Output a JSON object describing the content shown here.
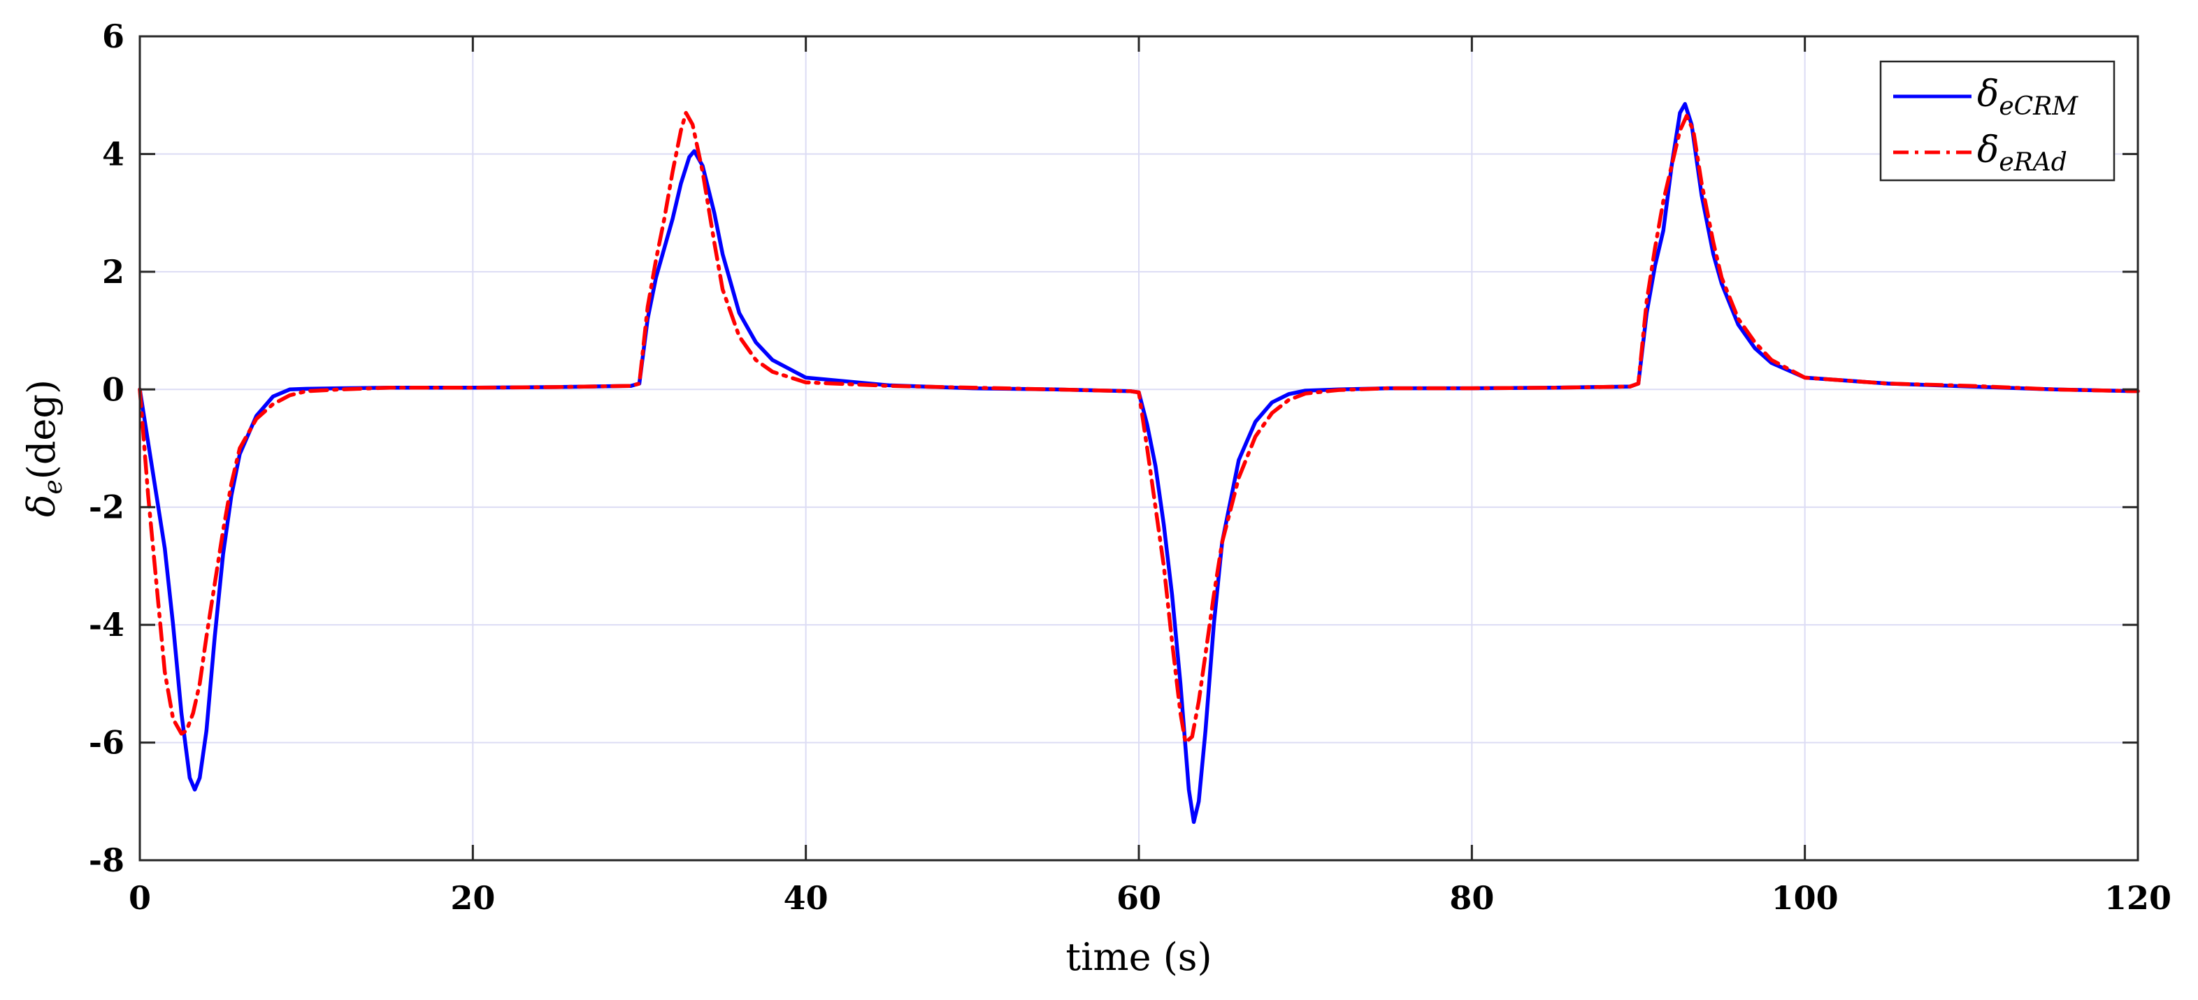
{
  "chart_data": {
    "type": "line",
    "title": "",
    "xlabel": "time (s)",
    "ylabel_main": "δ",
    "ylabel_sub": "e",
    "ylabel_unit": "(deg)",
    "xlim": [
      0,
      120
    ],
    "ylim": [
      -8,
      6
    ],
    "xticks": [
      0,
      20,
      40,
      60,
      80,
      100,
      120
    ],
    "yticks": [
      -8,
      -6,
      -4,
      -2,
      0,
      2,
      4,
      6
    ],
    "grid": true,
    "legend_position": "top-right",
    "series": [
      {
        "name": "δ",
        "name_sub": "eCRM",
        "color": "#0000ff",
        "style": "solid",
        "x": [
          0,
          0.5,
          1,
          1.5,
          2,
          2.5,
          3,
          3.3,
          3.6,
          4,
          4.5,
          5,
          5.5,
          6,
          7,
          8,
          9,
          10,
          12,
          15,
          20,
          25,
          29.5,
          30,
          30.5,
          31,
          31.5,
          32,
          32.5,
          33,
          33.3,
          33.8,
          34.5,
          35,
          36,
          37,
          38,
          40,
          45,
          50,
          55,
          59.5,
          60,
          60.5,
          61,
          61.5,
          62,
          62.5,
          63,
          63.3,
          63.6,
          64,
          64.5,
          65,
          66,
          67,
          68,
          69,
          70,
          72,
          75,
          80,
          85,
          89.5,
          90,
          90.5,
          91,
          91.5,
          92,
          92.5,
          92.8,
          93.2,
          93.8,
          94.5,
          95,
          96,
          97,
          98,
          100,
          105,
          110,
          115,
          120
        ],
        "values": [
          0,
          -0.9,
          -1.8,
          -2.7,
          -4.0,
          -5.5,
          -6.6,
          -6.8,
          -6.6,
          -5.8,
          -4.2,
          -2.8,
          -1.8,
          -1.1,
          -0.45,
          -0.12,
          0.0,
          0.01,
          0.02,
          0.03,
          0.03,
          0.04,
          0.06,
          0.1,
          1.2,
          1.9,
          2.4,
          2.9,
          3.5,
          3.95,
          4.05,
          3.8,
          3.0,
          2.3,
          1.3,
          0.8,
          0.5,
          0.2,
          0.07,
          0.02,
          0.0,
          -0.03,
          -0.05,
          -0.6,
          -1.3,
          -2.3,
          -3.5,
          -5.0,
          -6.8,
          -7.35,
          -7.0,
          -5.8,
          -4.0,
          -2.6,
          -1.2,
          -0.55,
          -0.22,
          -0.08,
          -0.02,
          0.0,
          0.02,
          0.02,
          0.03,
          0.05,
          0.1,
          1.3,
          2.1,
          2.7,
          3.8,
          4.7,
          4.85,
          4.5,
          3.3,
          2.3,
          1.8,
          1.1,
          0.7,
          0.45,
          0.2,
          0.1,
          0.05,
          0.0,
          -0.03
        ]
      },
      {
        "name": "δ",
        "name_sub": "eRAd",
        "color": "#ff0000",
        "style": "dashdot",
        "x": [
          0,
          0.5,
          1,
          1.5,
          2,
          2.5,
          2.8,
          3.2,
          3.6,
          4,
          4.5,
          5,
          5.5,
          6,
          7,
          8,
          9,
          10,
          12,
          15,
          20,
          25,
          29.5,
          30,
          30.5,
          31,
          31.5,
          32,
          32.5,
          32.8,
          33.2,
          33.8,
          34.5,
          35,
          36,
          37,
          38,
          40,
          45,
          50,
          55,
          59.5,
          60,
          60.5,
          61,
          61.5,
          62,
          62.5,
          62.8,
          63.2,
          63.6,
          64,
          64.5,
          65,
          66,
          67,
          68,
          69,
          70,
          72,
          75,
          80,
          85,
          89.5,
          90,
          90.5,
          91,
          91.5,
          92,
          92.5,
          92.9,
          93.3,
          93.8,
          94.5,
          95,
          96,
          97,
          98,
          100,
          105,
          110,
          115,
          120
        ],
        "values": [
          0,
          -1.8,
          -3.3,
          -4.8,
          -5.6,
          -5.85,
          -5.8,
          -5.5,
          -5.0,
          -4.2,
          -3.3,
          -2.4,
          -1.6,
          -1.0,
          -0.5,
          -0.25,
          -0.1,
          -0.03,
          0.0,
          0.03,
          0.03,
          0.04,
          0.06,
          0.1,
          1.4,
          2.2,
          2.9,
          3.7,
          4.4,
          4.7,
          4.5,
          3.7,
          2.5,
          1.7,
          0.9,
          0.5,
          0.3,
          0.12,
          0.06,
          0.03,
          0.0,
          -0.03,
          -0.05,
          -1.0,
          -2.0,
          -3.0,
          -4.3,
          -5.5,
          -6.0,
          -5.9,
          -5.3,
          -4.5,
          -3.5,
          -2.6,
          -1.5,
          -0.8,
          -0.4,
          -0.18,
          -0.07,
          -0.01,
          0.02,
          0.02,
          0.03,
          0.05,
          0.1,
          1.5,
          2.4,
          3.2,
          3.8,
          4.4,
          4.65,
          4.4,
          3.5,
          2.5,
          1.9,
          1.2,
          0.8,
          0.5,
          0.2,
          0.1,
          0.06,
          0.0,
          -0.03
        ]
      }
    ]
  }
}
